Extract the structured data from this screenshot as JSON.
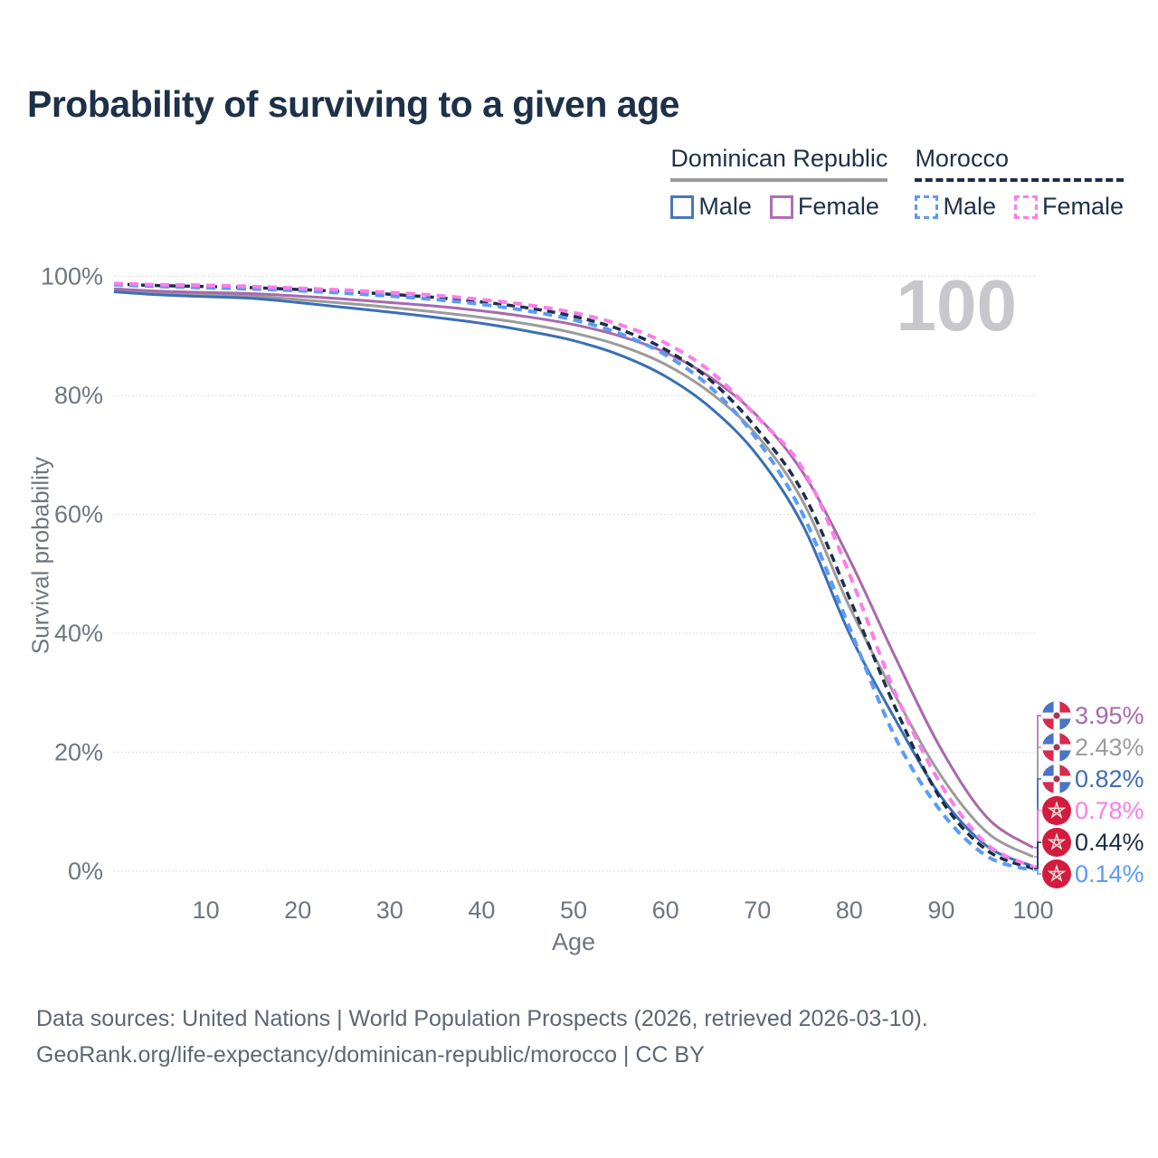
{
  "header": {
    "title": "Probability of surviving to a given age"
  },
  "legend": {
    "groups": [
      {
        "label": "Dominican Republic",
        "line_style": "solid",
        "color": "#9b9b9b"
      },
      {
        "label": "Morocco",
        "line_style": "dashed",
        "color": "#1d2e49"
      }
    ],
    "items": [
      {
        "label": "Male",
        "country": "Dominican Republic",
        "line_style": "solid",
        "color": "#4a77bc"
      },
      {
        "label": "Female",
        "country": "Dominican Republic",
        "line_style": "solid",
        "color": "#b06fb2"
      },
      {
        "label": "Male",
        "country": "Morocco",
        "line_style": "dashed",
        "color": "#5b9bf5"
      },
      {
        "label": "Female",
        "country": "Morocco",
        "line_style": "dashed",
        "color": "#fb7de9"
      }
    ]
  },
  "chart_data": {
    "type": "line",
    "title": "Probability of surviving to a given age",
    "xlabel": "Age",
    "ylabel": "Survival probability",
    "xlim": [
      0,
      100
    ],
    "ylim": [
      0,
      100
    ],
    "grid": "horizontal",
    "legend_position": "top-right",
    "watermark": "100",
    "x_ticks": [
      10,
      20,
      30,
      40,
      50,
      60,
      70,
      80,
      90,
      100
    ],
    "y_ticks": [
      0,
      20,
      40,
      60,
      80,
      100
    ],
    "y_tick_labels": [
      "0%",
      "20%",
      "40%",
      "60%",
      "80%",
      "100%"
    ],
    "x": [
      0,
      5,
      10,
      15,
      20,
      25,
      30,
      35,
      40,
      45,
      50,
      55,
      60,
      65,
      70,
      75,
      80,
      85,
      90,
      95,
      100
    ],
    "series": [
      {
        "name": "Dominican Republic Total",
        "country": "Dominican Republic",
        "sex": "Total",
        "line_style": "solid",
        "color": "#9b9b9b",
        "flag": "dominican-republic",
        "end_label": "2.43%",
        "values": [
          97.6,
          97.2,
          97.0,
          96.7,
          96.1,
          95.5,
          94.8,
          94.0,
          93.1,
          92.0,
          90.5,
          88.4,
          85.2,
          80.3,
          73.2,
          62.0,
          44.5,
          29.5,
          16.0,
          6.5,
          2.43
        ]
      },
      {
        "name": "Dominican Republic Male",
        "country": "Dominican Republic",
        "sex": "Male",
        "line_style": "solid",
        "color": "#3a6fb5",
        "flag": "dominican-republic",
        "end_label": "0.82%",
        "values": [
          97.4,
          96.9,
          96.6,
          96.3,
          95.6,
          94.8,
          94.0,
          93.1,
          92.1,
          90.8,
          89.2,
          86.8,
          83.2,
          77.8,
          69.9,
          58.0,
          40.0,
          25.5,
          12.5,
          4.2,
          0.82
        ]
      },
      {
        "name": "Dominican Republic Female",
        "country": "Dominican Republic",
        "sex": "Female",
        "line_style": "solid",
        "color": "#a869ac",
        "flag": "dominican-republic",
        "end_label": "3.95%",
        "values": [
          97.9,
          97.5,
          97.3,
          97.1,
          96.7,
          96.2,
          95.6,
          95.0,
          94.2,
          93.2,
          91.9,
          90.0,
          87.2,
          82.9,
          76.5,
          66.9,
          52.5,
          36.0,
          20.5,
          9.0,
          3.95
        ]
      },
      {
        "name": "Morocco Total",
        "country": "Morocco",
        "sex": "Total",
        "line_style": "dashed",
        "color": "#1d2e49",
        "flag": "morocco",
        "end_label": "0.44%",
        "values": [
          98.7,
          98.45,
          98.3,
          98.1,
          97.8,
          97.45,
          97.0,
          96.45,
          95.7,
          94.7,
          93.3,
          91.1,
          87.7,
          82.4,
          74.3,
          63.5,
          46.0,
          27.5,
          12.0,
          3.5,
          0.44
        ]
      },
      {
        "name": "Morocco Male",
        "country": "Morocco",
        "sex": "Male",
        "line_style": "dashed",
        "color": "#5b9bf5",
        "flag": "morocco",
        "end_label": "0.14%",
        "values": [
          98.6,
          98.3,
          98.1,
          97.9,
          97.6,
          97.2,
          96.7,
          96.1,
          95.3,
          94.2,
          92.7,
          90.4,
          86.8,
          81.2,
          72.5,
          59.8,
          41.0,
          22.5,
          10.0,
          2.5,
          0.14
        ]
      },
      {
        "name": "Morocco Female",
        "country": "Morocco",
        "sex": "Female",
        "line_style": "dashed",
        "color": "#fb7de9",
        "flag": "morocco",
        "end_label": "0.78%",
        "values": [
          98.8,
          98.6,
          98.5,
          98.3,
          98.0,
          97.7,
          97.3,
          96.8,
          96.1,
          95.2,
          93.9,
          91.9,
          88.8,
          83.9,
          76.3,
          67.5,
          50.0,
          30.0,
          14.5,
          4.5,
          0.78
        ]
      }
    ]
  },
  "footer": {
    "line1": "Data sources: United Nations | World Population Prospects (2026, retrieved 2026-03-10).",
    "line2": "GeoRank.org/life-expectancy/dominican-republic/morocco | CC BY"
  }
}
